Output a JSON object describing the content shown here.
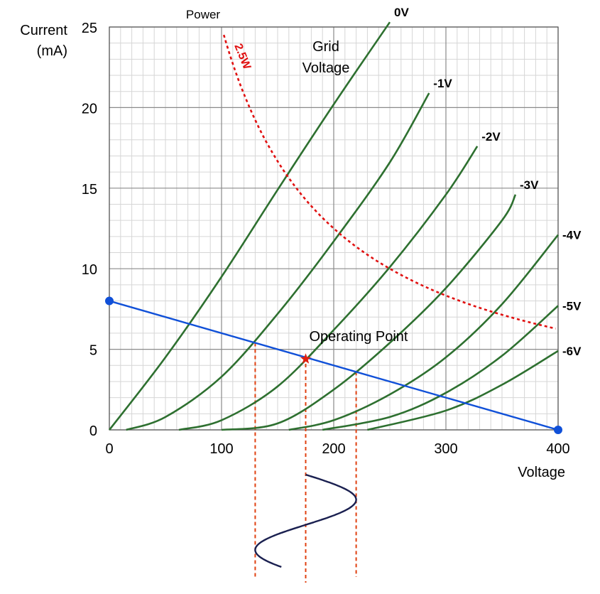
{
  "chart_data": {
    "type": "line",
    "xlabel": "Voltage",
    "ylabel_lines": [
      "Current",
      "(mA)"
    ],
    "xlim": [
      0,
      400
    ],
    "ylim": [
      0,
      25
    ],
    "x_ticks": [
      0,
      100,
      200,
      300,
      400
    ],
    "y_ticks": [
      0,
      5,
      10,
      15,
      20,
      25
    ],
    "grid": true,
    "grid_title_lines": [
      "Grid",
      "Voltage"
    ],
    "power_title": "Power",
    "power_curve": {
      "name": "2.5W",
      "watts": 2.5,
      "color": "#e01010",
      "x_range": [
        98,
        400
      ]
    },
    "series": [
      {
        "name": "0V",
        "x": [
          0,
          50,
          100,
          150,
          200,
          250
        ],
        "y": [
          0,
          4.5,
          9.5,
          14.9,
          20.2,
          25.3
        ],
        "color": "#2e7030"
      },
      {
        "name": "-1V",
        "x": [
          15,
          50,
          100,
          150,
          200,
          250,
          285
        ],
        "y": [
          0,
          0.8,
          3.3,
          7.2,
          11.7,
          16.6,
          20.9
        ],
        "color": "#2e7030"
      },
      {
        "name": "-2V",
        "x": [
          62,
          100,
          150,
          200,
          250,
          300,
          328
        ],
        "y": [
          0,
          0.6,
          2.7,
          6.2,
          10.1,
          14.6,
          17.6
        ],
        "color": "#2e7030"
      },
      {
        "name": "-3V",
        "x": [
          100,
          150,
          200,
          250,
          300,
          350,
          362
        ],
        "y": [
          0,
          0.4,
          2.5,
          5.4,
          8.8,
          13.0,
          14.6
        ],
        "color": "#2e7030"
      },
      {
        "name": "-4V",
        "x": [
          160,
          200,
          250,
          300,
          350,
          400
        ],
        "y": [
          0,
          0.6,
          2.2,
          4.5,
          7.8,
          12.1
        ],
        "color": "#2e7030"
      },
      {
        "name": "-5V",
        "x": [
          190,
          250,
          300,
          350,
          400
        ],
        "y": [
          0,
          0.8,
          2.3,
          4.6,
          7.7
        ],
        "color": "#2e7030"
      },
      {
        "name": "-6V",
        "x": [
          230,
          300,
          350,
          400
        ],
        "y": [
          0,
          1.2,
          2.8,
          4.9
        ],
        "color": "#2e7030"
      }
    ],
    "load_line": {
      "x": [
        0,
        400
      ],
      "y": [
        8,
        0
      ],
      "color": "#1050d8"
    },
    "operating_point": {
      "label": "Operating Point",
      "x": 175,
      "y": 4.4,
      "color": "#e02010"
    },
    "swing": {
      "x_min": 130,
      "x_center": 175,
      "x_max": 220,
      "color": "#1a2050",
      "guide_color": "#e04010"
    }
  }
}
